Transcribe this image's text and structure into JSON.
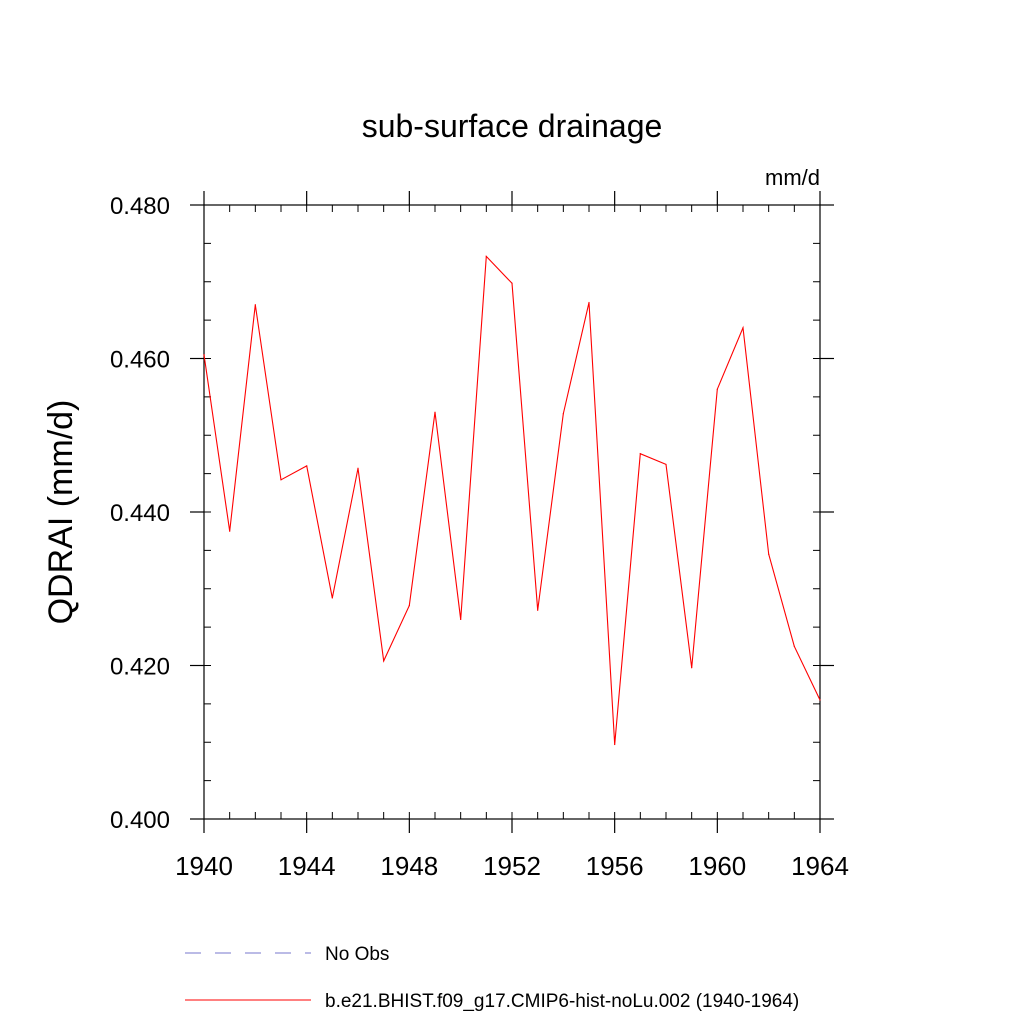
{
  "chart_data": {
    "type": "line",
    "title": "sub-surface drainage",
    "units_label": "mm/d",
    "ylabel": "QDRAI  (mm/d)",
    "xlabel": "",
    "xlim": [
      1940,
      1964
    ],
    "ylim": [
      0.4,
      0.48
    ],
    "x_ticks": [
      {
        "value": 1940,
        "label": "1940"
      },
      {
        "value": 1944,
        "label": "1944"
      },
      {
        "value": 1948,
        "label": "1948"
      },
      {
        "value": 1952,
        "label": "1952"
      },
      {
        "value": 1956,
        "label": "1956"
      },
      {
        "value": 1960,
        "label": "1960"
      },
      {
        "value": 1964,
        "label": "1964"
      }
    ],
    "y_ticks": [
      {
        "value": 0.4,
        "label": "0.400"
      },
      {
        "value": 0.42,
        "label": "0.420"
      },
      {
        "value": 0.44,
        "label": "0.440"
      },
      {
        "value": 0.46,
        "label": "0.460"
      },
      {
        "value": 0.48,
        "label": "0.480"
      }
    ],
    "x_minor_step": 1,
    "y_minor_step": 0.005,
    "grid": false,
    "legend_position": "bottom",
    "x": [
      1940,
      1941,
      1942,
      1943,
      1944,
      1945,
      1946,
      1947,
      1948,
      1949,
      1950,
      1951,
      1952,
      1953,
      1954,
      1955,
      1956,
      1957,
      1958,
      1959,
      1960,
      1961,
      1962,
      1963,
      1964
    ],
    "series": [
      {
        "name": "b.e21.BHIST.f09_g17.CMIP6-hist-noLu.002 (1940-1964)",
        "color": "#ff0000",
        "dash": "solid",
        "values": [
          0.4605,
          0.4375,
          0.467,
          0.4442,
          0.446,
          0.4288,
          0.4457,
          0.4206,
          0.4278,
          0.453,
          0.426,
          0.4733,
          0.4698,
          0.4272,
          0.4528,
          0.4673,
          0.4097,
          0.4476,
          0.4462,
          0.4197,
          0.456,
          0.464,
          0.4345,
          0.4225,
          0.4155
        ]
      }
    ],
    "legend": [
      {
        "label": "No Obs",
        "color": "#7777cc",
        "dash": "dashed"
      },
      {
        "label": "b.e21.BHIST.f09_g17.CMIP6-hist-noLu.002 (1940-1964)",
        "color": "#ff0000",
        "dash": "solid"
      }
    ]
  }
}
